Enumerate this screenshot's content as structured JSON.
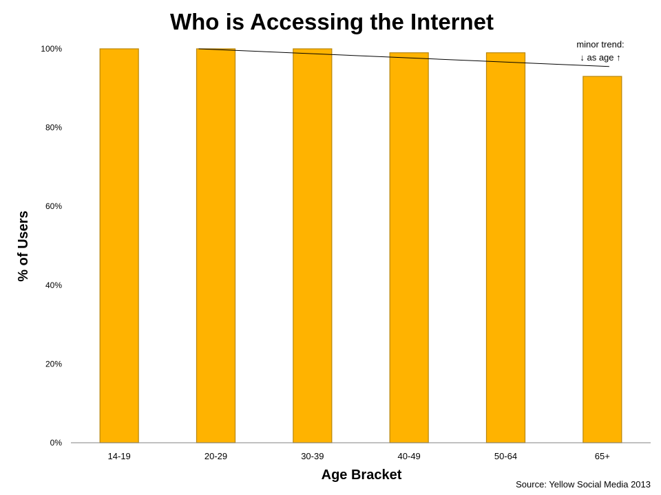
{
  "chart_data": {
    "type": "bar",
    "title": "Who is Accessing the Internet",
    "xlabel": "Age Bracket",
    "ylabel": "% of Users",
    "categories": [
      "14-19",
      "20-29",
      "30-39",
      "40-49",
      "50-64",
      "65+"
    ],
    "values": [
      100,
      100,
      100,
      99,
      99,
      93
    ],
    "ylim": [
      0,
      100
    ],
    "yticks": [
      "0%",
      "20%",
      "40%",
      "60%",
      "80%",
      "100%"
    ],
    "ytick_values": [
      0,
      20,
      40,
      60,
      80,
      100
    ],
    "grid": false,
    "legend": "none",
    "bar_color": "#FFB300",
    "bar_border_color": "#B8860B",
    "trendline": {
      "from_category": "20-29",
      "to_category": "65+",
      "start_value": 100,
      "end_value": 95.5
    },
    "annotation": {
      "line1": "minor trend:",
      "line2_arrow_left": "↓",
      "line2_text": " as age ",
      "line2_arrow_right": "↑"
    },
    "source": "Source: Yellow Social Media 2013"
  }
}
